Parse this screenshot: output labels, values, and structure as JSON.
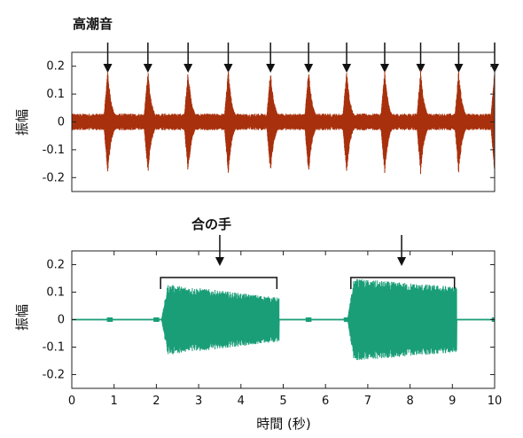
{
  "chart_data": [
    {
      "type": "line",
      "title": "",
      "annotation": "高潮音",
      "xlabel": "",
      "ylabel": "振幅",
      "xlim": [
        0,
        10
      ],
      "ylim": [
        -0.25,
        0.25
      ],
      "yticks": [
        0.2,
        0.1,
        0,
        -0.1,
        -0.2
      ],
      "ytick_labels": [
        "0.2",
        "0.1",
        "0",
        "-0.1",
        "-0.2"
      ],
      "grid": false,
      "series": [
        {
          "color": "#a8300c",
          "baseline_amplitude": 0.03,
          "pulse_amplitude": 0.19,
          "pulse_times": [
            0.85,
            1.8,
            2.75,
            3.7,
            4.7,
            5.6,
            6.5,
            7.4,
            8.25,
            9.15,
            10.0
          ]
        }
      ],
      "arrow_times": [
        0.85,
        1.8,
        2.75,
        3.7,
        4.7,
        5.6,
        6.5,
        7.4,
        8.25,
        9.15,
        10.0
      ]
    },
    {
      "type": "line",
      "title": "",
      "annotation": "合の手",
      "xlabel": "時間 (秒)",
      "ylabel": "振幅",
      "xlim": [
        0,
        10
      ],
      "ylim": [
        -0.25,
        0.25
      ],
      "xticks": [
        0,
        1,
        2,
        3,
        4,
        5,
        6,
        7,
        8,
        9,
        10
      ],
      "xtick_labels": [
        "0",
        "1",
        "2",
        "3",
        "4",
        "5",
        "6",
        "7",
        "8",
        "9",
        "10"
      ],
      "yticks": [
        0.2,
        0.1,
        0,
        -0.1,
        -0.2
      ],
      "ytick_labels": [
        "0.2",
        "0.1",
        "0",
        "-0.1",
        "-0.2"
      ],
      "grid": false,
      "series": [
        {
          "color": "#1a9e78",
          "bursts": [
            {
              "start": 2.2,
              "end": 4.9,
              "amplitude_start": 0.13,
              "amplitude_end": 0.08
            },
            {
              "start": 6.6,
              "end": 9.1,
              "amplitude_start": 0.15,
              "amplitude_end": 0.12
            }
          ],
          "blips": [
            0.9,
            2.0,
            5.6,
            6.5,
            10.0
          ]
        }
      ],
      "brackets": [
        {
          "start": 2.1,
          "end": 4.85,
          "arrow_time": 3.5
        },
        {
          "start": 6.6,
          "end": 9.05,
          "arrow_time": 7.8
        }
      ]
    }
  ]
}
